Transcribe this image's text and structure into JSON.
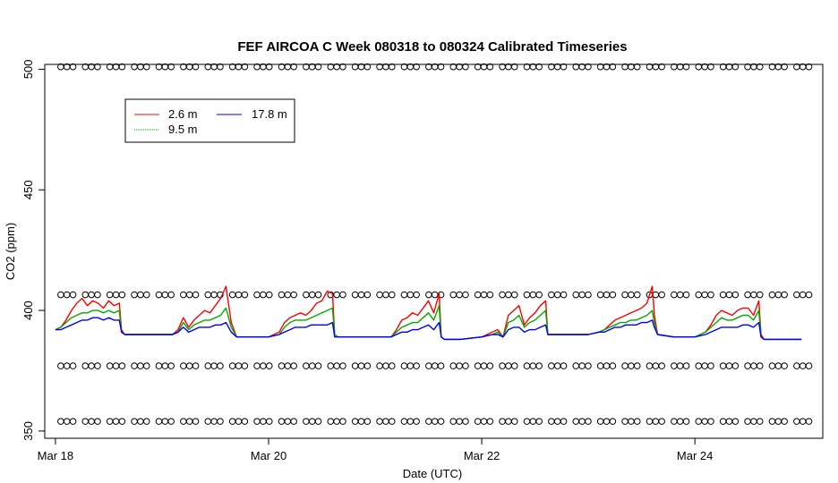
{
  "chart_data": {
    "type": "line",
    "title": "FEF AIRCOA C  Week 080318 to 080324  Calibrated Timeseries",
    "xlabel": "Date (UTC)",
    "ylabel": "CO2 (ppm)",
    "x_unit": "day of March 2008 (UTC)",
    "xlim": [
      17.9,
      25.2
    ],
    "ylim": [
      347,
      502
    ],
    "xticks": [
      {
        "value": 18,
        "label": "Mar 18"
      },
      {
        "value": 20,
        "label": "Mar 20"
      },
      {
        "value": 22,
        "label": "Mar 22"
      },
      {
        "value": 24,
        "label": "Mar 24"
      }
    ],
    "yticks": [
      {
        "value": 350,
        "label": "350"
      },
      {
        "value": 400,
        "label": "400"
      },
      {
        "value": 450,
        "label": "450"
      },
      {
        "value": 500,
        "label": "500"
      }
    ],
    "grid": false,
    "legend": {
      "position": "top-left",
      "entries": [
        {
          "name": "2.6 m",
          "color": "#ff0000",
          "style": "solid"
        },
        {
          "name": "9.5 m",
          "color": "#00aa00",
          "style": "dotted"
        },
        {
          "name": "17.8 m",
          "color": "#0000ff",
          "style": "solid"
        }
      ]
    },
    "series": [
      {
        "name": "2.6 m",
        "color": "#ff0000",
        "x": [
          18.0,
          18.05,
          18.1,
          18.15,
          18.2,
          18.25,
          18.3,
          18.35,
          18.4,
          18.45,
          18.5,
          18.55,
          18.6,
          18.62,
          18.65,
          18.8,
          19.0,
          19.1,
          19.15,
          19.2,
          19.25,
          19.3,
          19.35,
          19.4,
          19.45,
          19.5,
          19.55,
          19.6,
          19.65,
          19.7,
          19.8,
          20.0,
          20.1,
          20.15,
          20.2,
          20.25,
          20.3,
          20.35,
          20.4,
          20.45,
          20.5,
          20.55,
          20.6,
          20.62,
          20.65,
          20.8,
          21.0,
          21.1,
          21.15,
          21.2,
          21.25,
          21.3,
          21.35,
          21.4,
          21.45,
          21.5,
          21.55,
          21.6,
          21.62,
          21.65,
          21.8,
          22.0,
          22.1,
          22.15,
          22.2,
          22.25,
          22.3,
          22.35,
          22.4,
          22.45,
          22.5,
          22.55,
          22.6,
          22.62,
          22.65,
          22.8,
          23.0,
          23.1,
          23.15,
          23.2,
          23.25,
          23.3,
          23.35,
          23.4,
          23.45,
          23.5,
          23.55,
          23.6,
          23.62,
          23.65,
          23.8,
          24.0,
          24.1,
          24.15,
          24.2,
          24.25,
          24.3,
          24.35,
          24.4,
          24.45,
          24.5,
          24.55,
          24.6,
          24.62,
          24.65,
          24.8,
          25.0
        ],
        "y": [
          392,
          393,
          396,
          400,
          403,
          405,
          402,
          404,
          403,
          401,
          404,
          402,
          403,
          392,
          390,
          390,
          390,
          390,
          392,
          397,
          393,
          396,
          398,
          400,
          399,
          402,
          405,
          410,
          395,
          389,
          389,
          389,
          391,
          395,
          397,
          398,
          399,
          398,
          400,
          403,
          404,
          408,
          407,
          390,
          389,
          389,
          389,
          389,
          389,
          392,
          396,
          397,
          399,
          398,
          401,
          404,
          399,
          407,
          389,
          388,
          388,
          389,
          391,
          392,
          389,
          398,
          400,
          402,
          394,
          397,
          399,
          402,
          404,
          390,
          390,
          390,
          390,
          391,
          392,
          394,
          396,
          397,
          398,
          399,
          400,
          401,
          403,
          410,
          398,
          390,
          389,
          389,
          391,
          394,
          398,
          400,
          399,
          398,
          400,
          401,
          401,
          398,
          404,
          390,
          388,
          388,
          388
        ]
      },
      {
        "name": "9.5 m",
        "color": "#00aa00",
        "x": [
          18.0,
          18.05,
          18.1,
          18.15,
          18.2,
          18.25,
          18.3,
          18.35,
          18.4,
          18.45,
          18.5,
          18.55,
          18.6,
          18.62,
          18.65,
          18.8,
          19.0,
          19.1,
          19.15,
          19.2,
          19.25,
          19.3,
          19.35,
          19.4,
          19.45,
          19.5,
          19.55,
          19.6,
          19.65,
          19.7,
          19.8,
          20.0,
          20.1,
          20.15,
          20.2,
          20.25,
          20.3,
          20.35,
          20.4,
          20.45,
          20.5,
          20.55,
          20.6,
          20.62,
          20.65,
          20.8,
          21.0,
          21.1,
          21.15,
          21.2,
          21.25,
          21.3,
          21.35,
          21.4,
          21.45,
          21.5,
          21.55,
          21.6,
          21.62,
          21.65,
          21.8,
          22.0,
          22.1,
          22.15,
          22.2,
          22.25,
          22.3,
          22.35,
          22.4,
          22.45,
          22.5,
          22.55,
          22.6,
          22.62,
          22.65,
          22.8,
          23.0,
          23.1,
          23.15,
          23.2,
          23.25,
          23.3,
          23.35,
          23.4,
          23.45,
          23.5,
          23.55,
          23.6,
          23.62,
          23.65,
          23.8,
          24.0,
          24.1,
          24.15,
          24.2,
          24.25,
          24.3,
          24.35,
          24.4,
          24.45,
          24.5,
          24.55,
          24.6,
          24.62,
          24.65,
          24.8,
          25.0
        ],
        "y": [
          392,
          393,
          395,
          397,
          398,
          399,
          399,
          400,
          400,
          399,
          400,
          399,
          400,
          391,
          390,
          390,
          390,
          390,
          391,
          395,
          392,
          394,
          395,
          396,
          396,
          397,
          398,
          401,
          393,
          389,
          389,
          389,
          390,
          393,
          395,
          396,
          396,
          396,
          397,
          398,
          399,
          400,
          401,
          390,
          389,
          389,
          389,
          389,
          389,
          391,
          393,
          394,
          395,
          395,
          397,
          399,
          396,
          402,
          389,
          388,
          388,
          389,
          390,
          391,
          389,
          395,
          396,
          398,
          393,
          395,
          396,
          398,
          400,
          390,
          390,
          390,
          390,
          391,
          392,
          393,
          394,
          395,
          395,
          396,
          396,
          397,
          398,
          400,
          395,
          390,
          389,
          389,
          391,
          393,
          395,
          397,
          396,
          396,
          397,
          398,
          398,
          396,
          400,
          389,
          388,
          388,
          388
        ]
      },
      {
        "name": "17.8 m",
        "color": "#0000ff",
        "x": [
          18.0,
          18.05,
          18.1,
          18.15,
          18.2,
          18.25,
          18.3,
          18.35,
          18.4,
          18.45,
          18.5,
          18.55,
          18.6,
          18.62,
          18.65,
          18.8,
          19.0,
          19.1,
          19.15,
          19.2,
          19.25,
          19.3,
          19.35,
          19.4,
          19.45,
          19.5,
          19.55,
          19.6,
          19.65,
          19.7,
          19.8,
          20.0,
          20.1,
          20.15,
          20.2,
          20.25,
          20.3,
          20.35,
          20.4,
          20.45,
          20.5,
          20.55,
          20.6,
          20.62,
          20.65,
          20.8,
          21.0,
          21.1,
          21.15,
          21.2,
          21.25,
          21.3,
          21.35,
          21.4,
          21.45,
          21.5,
          21.55,
          21.6,
          21.62,
          21.65,
          21.8,
          22.0,
          22.1,
          22.15,
          22.2,
          22.25,
          22.3,
          22.35,
          22.4,
          22.45,
          22.5,
          22.55,
          22.6,
          22.62,
          22.65,
          22.8,
          23.0,
          23.1,
          23.15,
          23.2,
          23.25,
          23.3,
          23.35,
          23.4,
          23.45,
          23.5,
          23.55,
          23.6,
          23.62,
          23.65,
          23.8,
          24.0,
          24.1,
          24.15,
          24.2,
          24.25,
          24.3,
          24.35,
          24.4,
          24.45,
          24.5,
          24.55,
          24.6,
          24.62,
          24.65,
          24.8,
          25.0
        ],
        "y": [
          392,
          392,
          393,
          394,
          395,
          396,
          396,
          397,
          397,
          396,
          397,
          396,
          396,
          391,
          390,
          390,
          390,
          390,
          391,
          393,
          391,
          392,
          393,
          393,
          393,
          394,
          394,
          395,
          391,
          389,
          389,
          389,
          390,
          391,
          392,
          393,
          393,
          393,
          394,
          394,
          394,
          394,
          395,
          389,
          389,
          389,
          389,
          389,
          389,
          390,
          391,
          391,
          392,
          392,
          393,
          394,
          392,
          395,
          389,
          388,
          388,
          389,
          390,
          390,
          389,
          392,
          393,
          393,
          391,
          392,
          392,
          393,
          394,
          390,
          390,
          390,
          390,
          391,
          391,
          392,
          393,
          393,
          394,
          394,
          394,
          395,
          395,
          396,
          393,
          390,
          389,
          389,
          390,
          391,
          392,
          393,
          393,
          393,
          393,
          394,
          394,
          393,
          395,
          389,
          388,
          388,
          388
        ]
      }
    ],
    "marker_rows": [
      {
        "y": 501
      },
      {
        "y": 406.5
      },
      {
        "y": 377
      },
      {
        "y": 354
      }
    ]
  }
}
